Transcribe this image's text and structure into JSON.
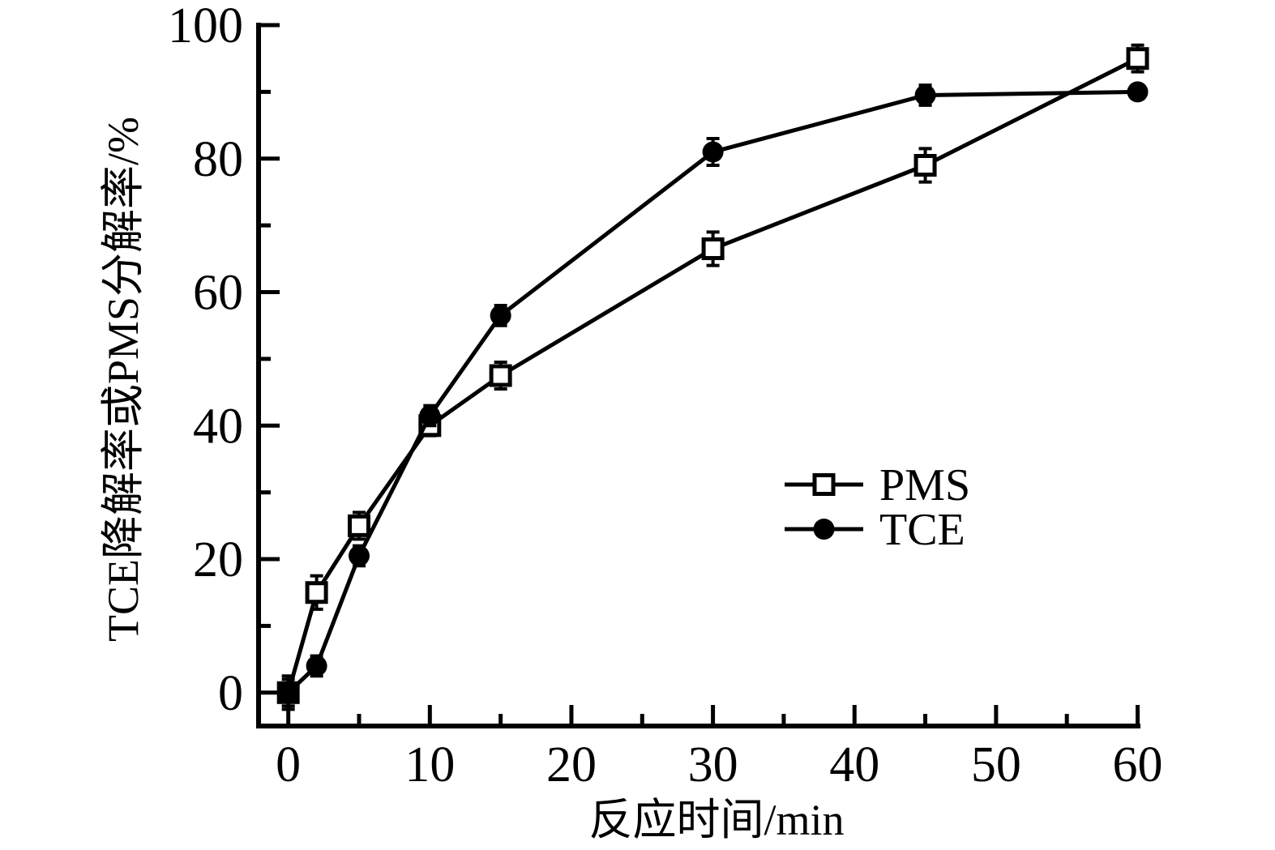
{
  "figure": {
    "background_color": "#ffffff",
    "foreground_color": "#000000"
  },
  "chart_data": {
    "type": "line",
    "title": "",
    "xlabel": "反应时间/min",
    "ylabel": "TCE降解率或PMS分解率/%",
    "xlim": [
      -2.1,
      60.2
    ],
    "ylim": [
      -5,
      100
    ],
    "x_major_ticks": [
      0,
      10,
      20,
      30,
      40,
      50,
      60
    ],
    "x_minor_ticks": [
      5,
      15,
      25,
      35,
      45,
      55
    ],
    "y_major_ticks": [
      0,
      20,
      40,
      60,
      80,
      100
    ],
    "y_minor_ticks": [
      10,
      30,
      50,
      70,
      90
    ],
    "grid": false,
    "legend": {
      "position": "center-right",
      "entries": [
        "PMS",
        "TCE"
      ]
    },
    "x": [
      0,
      2,
      5,
      10,
      15,
      30,
      45,
      60
    ],
    "series": [
      {
        "name": "PMS",
        "marker": "open-square",
        "color": "#000000",
        "y": [
          0,
          15,
          25,
          40,
          47.5,
          66.5,
          79,
          95
        ],
        "yerr": [
          2.5,
          2.5,
          2,
          1.5,
          2,
          2.5,
          2.5,
          2
        ]
      },
      {
        "name": "TCE",
        "marker": "filled-circle",
        "color": "#000000",
        "y": [
          0,
          4,
          20.5,
          41.5,
          56.5,
          81,
          89.5,
          90
        ],
        "yerr": [
          2,
          1.5,
          1.5,
          1.5,
          1.5,
          2,
          1.5,
          1
        ]
      }
    ]
  }
}
